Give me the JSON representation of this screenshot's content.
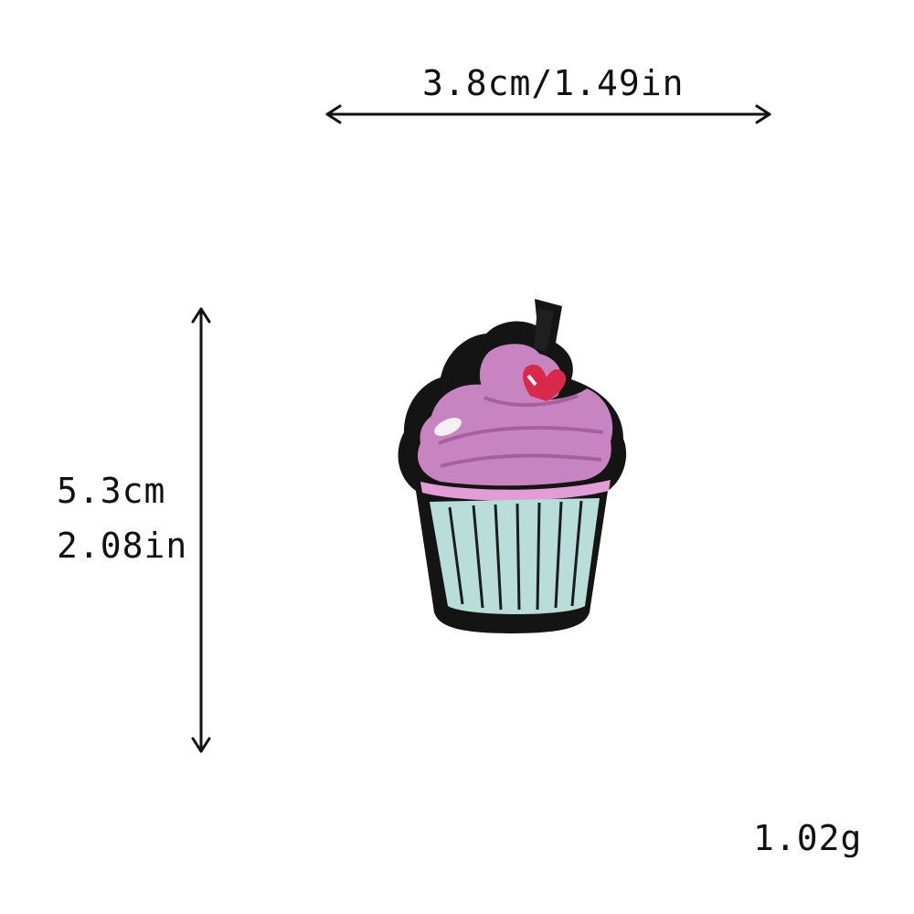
{
  "dimensions": {
    "width_label": "3.8cm/1.49in",
    "height_label_cm": "5.3cm",
    "height_label_in": "2.08in"
  },
  "weight_label": "1.02g",
  "colors": {
    "background": "#ffffff",
    "arrow": "#111111",
    "patch_border": "#141414",
    "frosting": "#c784c0",
    "frosting_dark": "#a85f9f",
    "frosting_rim": "#e29cd6",
    "highlight": "#f4f0f4",
    "cherry": "#d8284c",
    "wrapper": "#b9ddd9",
    "wrapper_stripe": "#1c1c1c"
  },
  "icons": {
    "patch": "cupcake-embroidered-patch-icon"
  }
}
